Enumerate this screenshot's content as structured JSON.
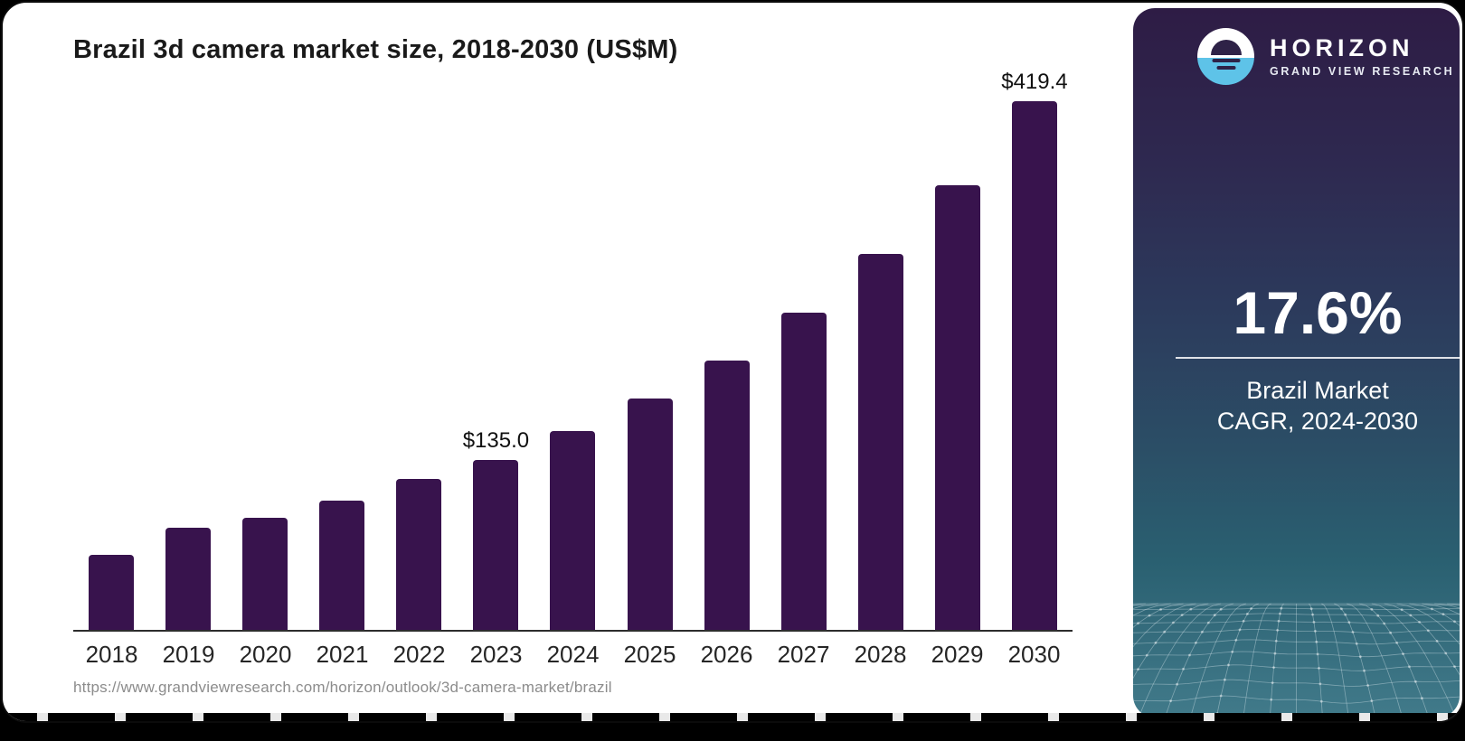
{
  "chart": {
    "source_url": "https://www.grandviewresearch.com/horizon/outlook/3d-camera-market/brazil",
    "axis_color": "#2d2d2d",
    "label_color": "#111111"
  },
  "chart_data": {
    "type": "bar",
    "title": "Brazil 3d camera market size, 2018-2030 (US$M)",
    "unit": "US$M",
    "categories": [
      "2018",
      "2019",
      "2020",
      "2021",
      "2022",
      "2023",
      "2024",
      "2025",
      "2026",
      "2027",
      "2028",
      "2029",
      "2030"
    ],
    "values": [
      59.8,
      81.3,
      88.6,
      102.2,
      119.5,
      135.0,
      157.5,
      183.3,
      214.0,
      252.0,
      298.2,
      353.0,
      419.4
    ],
    "annotations": [
      {
        "category": "2023",
        "label": "$135.0"
      },
      {
        "category": "2030",
        "label": "$419.4"
      }
    ],
    "bar_color": "#38134d",
    "xlabel": "",
    "ylabel": "",
    "ylim": [
      0,
      419.4
    ],
    "grid": false,
    "legend": false
  },
  "sidebar": {
    "brand": {
      "name": "HORIZON",
      "tagline": "GRAND VIEW RESEARCH",
      "icon": "horizon-sunset-icon",
      "accent_blue": "#5ec3e8",
      "icon_purple": "#2e2247"
    },
    "stat": {
      "value": "17.6%",
      "caption_line1": "Brazil Market",
      "caption_line2": "CAGR, 2024-2030"
    },
    "gradient_top": "#2e1c45",
    "gradient_mid": "#2c3a5c",
    "gradient_bottom": "#417a8a"
  }
}
